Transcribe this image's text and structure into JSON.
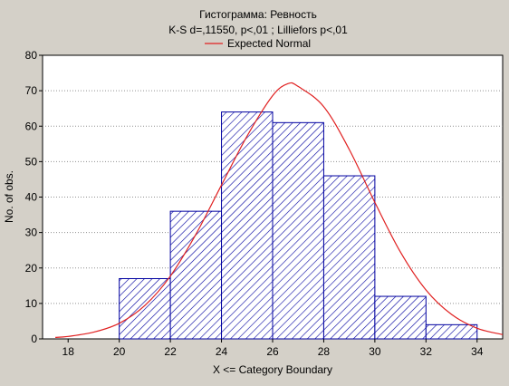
{
  "chart_data": {
    "type": "bar",
    "title": "Гистограмма: Ревность",
    "subtitle": "K-S d=,11550, p<,01 ; Lilliefors p<,01",
    "legend": [
      {
        "label": "Expected Normal",
        "color": "#e02020",
        "placement": "top-center"
      }
    ],
    "xlabel": "X <= Category Boundary",
    "ylabel": "No. of obs.",
    "xlim": [
      17,
      35
    ],
    "ylim": [
      0,
      80
    ],
    "xticks": [
      "18",
      "20",
      "22",
      "24",
      "26",
      "28",
      "30",
      "32",
      "34"
    ],
    "yticks": [
      "0",
      "10",
      "20",
      "30",
      "40",
      "50",
      "60",
      "70",
      "80"
    ],
    "grid": "horizontal-dotted",
    "bars": [
      {
        "x0": 20,
        "x1": 22,
        "value": 17
      },
      {
        "x0": 22,
        "x1": 24,
        "value": 36
      },
      {
        "x0": 24,
        "x1": 26,
        "value": 64
      },
      {
        "x0": 26,
        "x1": 28,
        "value": 61
      },
      {
        "x0": 28,
        "x1": 30,
        "value": 46
      },
      {
        "x0": 30,
        "x1": 32,
        "value": 12
      },
      {
        "x0": 32,
        "x1": 34,
        "value": 4
      }
    ],
    "expected_normal": {
      "x": [
        17.5,
        18,
        19,
        20,
        21,
        22,
        23,
        24,
        25,
        26,
        26.6,
        27,
        28,
        29,
        30,
        31,
        32,
        33,
        34,
        35
      ],
      "y": [
        0.4,
        0.7,
        1.9,
        4.4,
        9.4,
        17.7,
        29.5,
        43.4,
        57.2,
        68.6,
        72,
        71.2,
        65.5,
        53.4,
        38.5,
        24.5,
        13.8,
        6.9,
        3.0,
        1.2
      ]
    },
    "bar_color": "#0000a0",
    "curve_color": "#e02020"
  }
}
